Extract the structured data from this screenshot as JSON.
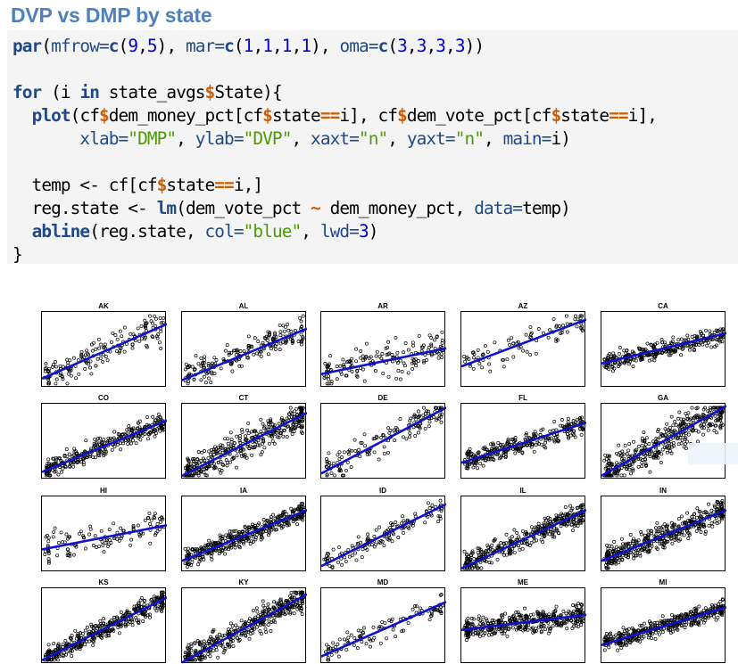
{
  "heading": "DVP vs DMP by state",
  "code_lines": [
    [
      [
        "fn",
        "par"
      ],
      [
        "",
        "("
      ],
      [
        "arg",
        "mfrow="
      ],
      [
        "fn",
        "c"
      ],
      [
        "",
        "("
      ],
      [
        "num",
        "9"
      ],
      [
        "",
        ","
      ],
      [
        "num",
        "5"
      ],
      [
        "",
        "), "
      ],
      [
        "arg",
        "mar="
      ],
      [
        "fn",
        "c"
      ],
      [
        "",
        "("
      ],
      [
        "num",
        "1"
      ],
      [
        "",
        ","
      ],
      [
        "num",
        "1"
      ],
      [
        "",
        ","
      ],
      [
        "num",
        "1"
      ],
      [
        "",
        ","
      ],
      [
        "num",
        "1"
      ],
      [
        "",
        "), "
      ],
      [
        "arg",
        "oma="
      ],
      [
        "fn",
        "c"
      ],
      [
        "",
        "("
      ],
      [
        "num",
        "3"
      ],
      [
        "",
        ","
      ],
      [
        "num",
        "3"
      ],
      [
        "",
        ","
      ],
      [
        "num",
        "3"
      ],
      [
        "",
        ","
      ],
      [
        "num",
        "3"
      ],
      [
        "",
        "))"
      ]
    ],
    [],
    [
      [
        "kw",
        "for"
      ],
      [
        "",
        " (i "
      ],
      [
        "kw",
        "in"
      ],
      [
        "",
        " state_avgs"
      ],
      [
        "op",
        "$"
      ],
      [
        "",
        "State){"
      ]
    ],
    [
      [
        "",
        "  "
      ],
      [
        "fn",
        "plot"
      ],
      [
        "",
        "(cf"
      ],
      [
        "op",
        "$"
      ],
      [
        "",
        "dem_money_pct[cf"
      ],
      [
        "op",
        "$"
      ],
      [
        "",
        "state"
      ],
      [
        "op",
        "=="
      ],
      [
        "",
        "i], cf"
      ],
      [
        "op",
        "$"
      ],
      [
        "",
        "dem_vote_pct[cf"
      ],
      [
        "op",
        "$"
      ],
      [
        "",
        "state"
      ],
      [
        "op",
        "=="
      ],
      [
        "",
        "i],"
      ]
    ],
    [
      [
        "",
        "       "
      ],
      [
        "arg",
        "xlab="
      ],
      [
        "str",
        "\"DMP\""
      ],
      [
        "",
        ", "
      ],
      [
        "arg",
        "ylab="
      ],
      [
        "str",
        "\"DVP\""
      ],
      [
        "",
        ", "
      ],
      [
        "arg",
        "xaxt="
      ],
      [
        "str",
        "\"n\""
      ],
      [
        "",
        ", "
      ],
      [
        "arg",
        "yaxt="
      ],
      [
        "str",
        "\"n\""
      ],
      [
        "",
        ", "
      ],
      [
        "arg",
        "main="
      ],
      [
        "",
        "i)"
      ]
    ],
    [],
    [
      [
        "",
        "  temp <- cf[cf"
      ],
      [
        "op",
        "$"
      ],
      [
        "",
        "state"
      ],
      [
        "op",
        "=="
      ],
      [
        "",
        "i,]"
      ]
    ],
    [
      [
        "",
        "  reg.state <- "
      ],
      [
        "fn",
        "lm"
      ],
      [
        "",
        "(dem_vote_pct "
      ],
      [
        "op",
        "~"
      ],
      [
        "",
        " dem_money_pct, "
      ],
      [
        "arg",
        "data="
      ],
      [
        "",
        "temp)"
      ]
    ],
    [
      [
        "",
        "  "
      ],
      [
        "fn",
        "abline"
      ],
      [
        "",
        "(reg.state, "
      ],
      [
        "arg",
        "col="
      ],
      [
        "str",
        "\"blue\""
      ],
      [
        "",
        ", "
      ],
      [
        "arg",
        "lwd="
      ],
      [
        "num",
        "3"
      ],
      [
        "",
        ")"
      ]
    ],
    [
      [
        "",
        "}"
      ]
    ]
  ],
  "plots": [
    {
      "state": "AK",
      "line": [
        0.12,
        0.84
      ],
      "n": 170,
      "spread": 0.22,
      "seed": 11
    },
    {
      "state": "AL",
      "line": [
        0.1,
        0.78
      ],
      "n": 200,
      "spread": 0.2,
      "seed": 12
    },
    {
      "state": "AR",
      "line": [
        0.18,
        0.52
      ],
      "n": 160,
      "spread": 0.25,
      "seed": 13
    },
    {
      "state": "AZ",
      "line": [
        0.28,
        0.9
      ],
      "n": 90,
      "spread": 0.2,
      "seed": 14
    },
    {
      "state": "CA",
      "line": [
        0.32,
        0.72
      ],
      "n": 300,
      "spread": 0.12,
      "seed": 15
    },
    {
      "state": "CO",
      "line": [
        0.1,
        0.78
      ],
      "n": 320,
      "spread": 0.14,
      "seed": 16
    },
    {
      "state": "CT",
      "line": [
        0.05,
        0.88
      ],
      "n": 380,
      "spread": 0.2,
      "seed": 17
    },
    {
      "state": "DE",
      "line": [
        0.08,
        0.95
      ],
      "n": 150,
      "spread": 0.18,
      "seed": 18
    },
    {
      "state": "FL",
      "line": [
        0.22,
        0.75
      ],
      "n": 300,
      "spread": 0.14,
      "seed": 19
    },
    {
      "state": "GA",
      "line": [
        0.05,
        0.97
      ],
      "n": 420,
      "spread": 0.25,
      "seed": 20
    },
    {
      "state": "HI",
      "line": [
        0.3,
        0.62
      ],
      "n": 120,
      "spread": 0.2,
      "seed": 21
    },
    {
      "state": "IA",
      "line": [
        0.15,
        0.82
      ],
      "n": 400,
      "spread": 0.13,
      "seed": 22
    },
    {
      "state": "ID",
      "line": [
        0.08,
        0.9
      ],
      "n": 140,
      "spread": 0.15,
      "seed": 23
    },
    {
      "state": "IL",
      "line": [
        0.05,
        0.82
      ],
      "n": 380,
      "spread": 0.15,
      "seed": 24
    },
    {
      "state": "IN",
      "line": [
        0.15,
        0.82
      ],
      "n": 420,
      "spread": 0.16,
      "seed": 25
    },
    {
      "state": "KS",
      "line": [
        0.05,
        0.88
      ],
      "n": 420,
      "spread": 0.13,
      "seed": 26
    },
    {
      "state": "KY",
      "line": [
        0.02,
        0.92
      ],
      "n": 400,
      "spread": 0.18,
      "seed": 27
    },
    {
      "state": "MD",
      "line": [
        0.1,
        0.82
      ],
      "n": 110,
      "spread": 0.15,
      "seed": 28
    },
    {
      "state": "ME",
      "line": [
        0.45,
        0.65
      ],
      "n": 420,
      "spread": 0.15,
      "seed": 29
    },
    {
      "state": "MI",
      "line": [
        0.25,
        0.75
      ],
      "n": 420,
      "spread": 0.12,
      "seed": 30
    }
  ]
}
